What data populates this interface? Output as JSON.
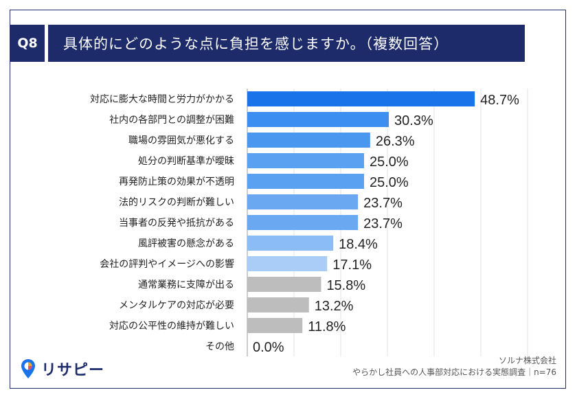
{
  "header": {
    "badge": "Q8",
    "question": "具体的にどのような点に負担を感じますか。（複数回答）"
  },
  "footer": {
    "logo_text": "リサピー",
    "company": "ソルナ株式会社",
    "survey": "やらかし社員への人事部対応における実態調査｜n=76"
  },
  "chart_data": {
    "type": "bar",
    "orientation": "horizontal",
    "categories": [
      "対応に膨大な時間と労力がかかる",
      "社内の各部門との調整が困難",
      "職場の雰囲気が悪化する",
      "処分の判断基準が曖昧",
      "再発防止策の効果が不透明",
      "法的リスクの判断が難しい",
      "当事者の反発や抵抗がある",
      "風評被害の懸念がある",
      "会社の評判やイメージへの影響",
      "通常業務に支障が出る",
      "メンタルケアの対応が必要",
      "対応の公平性の維持が難しい",
      "その他"
    ],
    "values": [
      48.7,
      30.3,
      26.3,
      25.0,
      25.0,
      23.7,
      23.7,
      18.4,
      17.1,
      15.8,
      13.2,
      11.8,
      0.0
    ],
    "value_labels": [
      "48.7%",
      "30.3%",
      "26.3%",
      "25.0%",
      "25.0%",
      "23.7%",
      "23.7%",
      "18.4%",
      "17.1%",
      "15.8%",
      "13.2%",
      "11.8%",
      "0.0%"
    ],
    "colors": [
      "#1a73e8",
      "#3c8ff0",
      "#4a97f0",
      "#5ba1f2",
      "#5ba1f2",
      "#6aa9f2",
      "#6aa9f2",
      "#8cbcf5",
      "#a9cdf7",
      "#bdbdbd",
      "#bdbdbd",
      "#bdbdbd",
      "#bdbdbd"
    ],
    "xlim": [
      0,
      60
    ],
    "grid": true
  }
}
